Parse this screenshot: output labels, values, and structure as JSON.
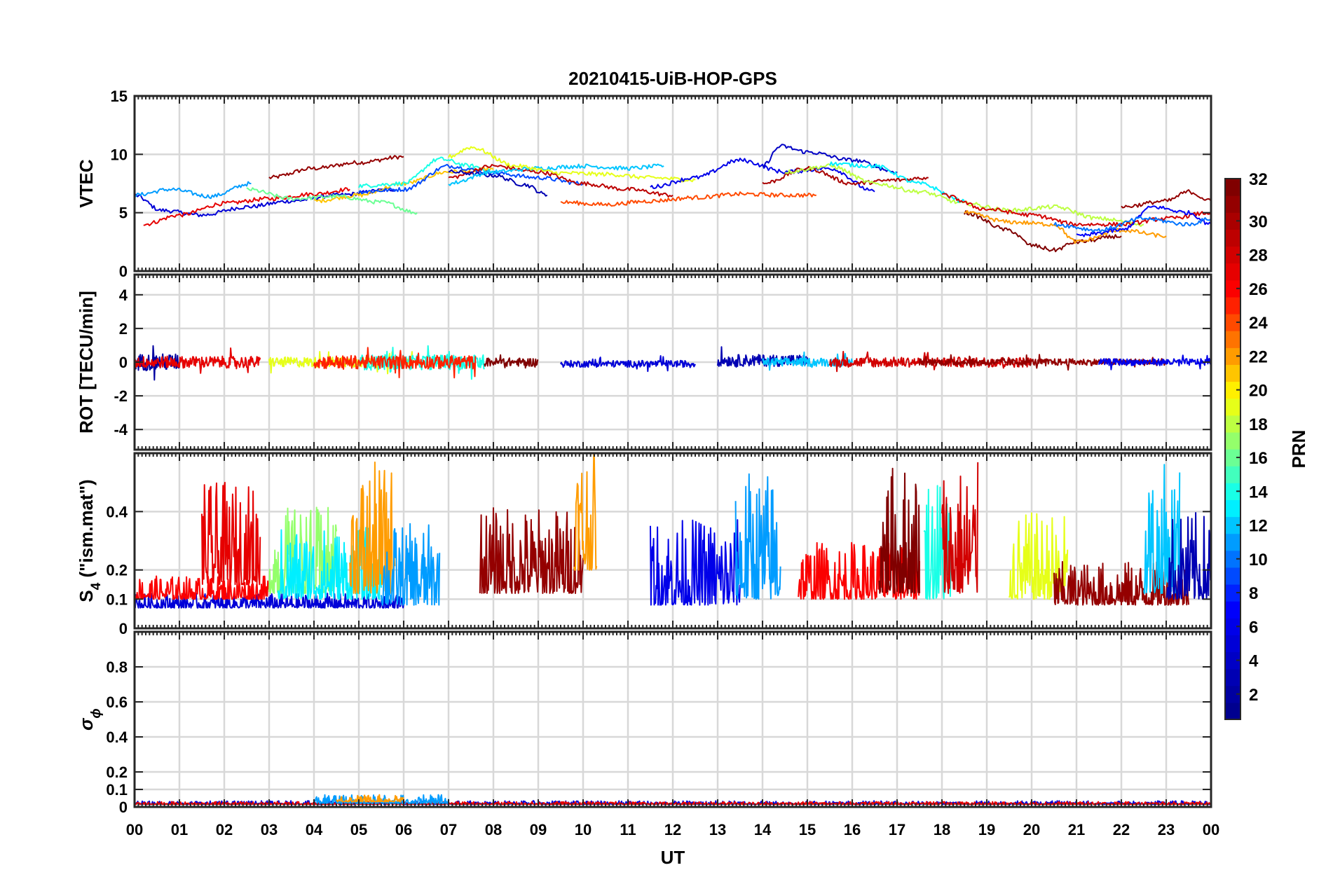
{
  "title": "20210415-UiB-HOP-GPS",
  "xlabel": "UT",
  "colormap": {
    "label": "PRN",
    "range": [
      1,
      32
    ],
    "ticks": [
      2,
      4,
      6,
      8,
      10,
      12,
      14,
      16,
      18,
      20,
      22,
      24,
      26,
      28,
      30,
      32
    ],
    "stops": [
      "#00008f",
      "#0000ff",
      "#00ffff",
      "#ffff00",
      "#ff0000",
      "#800000"
    ]
  },
  "chart_data": [
    {
      "type": "line",
      "id": "vtec",
      "ylabel": "VTEC",
      "ylabel_html": "",
      "xlim": [
        0,
        24
      ],
      "ylim": [
        0,
        15
      ],
      "yticks": [
        0,
        5,
        10,
        15
      ],
      "ytick_labels": [
        "0",
        "5",
        "10",
        "15"
      ],
      "grid": true,
      "series_shape": "smooth",
      "series": [
        {
          "prn": 31,
          "x": [
            3.0,
            4.0,
            5.0,
            6.0
          ],
          "values": [
            8.0,
            8.8,
            9.3,
            9.8
          ]
        },
        {
          "prn": 5,
          "x": [
            0.0,
            0.6,
            1.5,
            2.5,
            3.5,
            4.5,
            5.8
          ],
          "values": [
            6.5,
            5.2,
            4.8,
            5.5,
            6.0,
            6.5,
            7.0
          ]
        },
        {
          "prn": 27,
          "x": [
            0.2,
            1.0,
            2.0,
            3.0,
            4.0,
            4.8
          ],
          "values": [
            4.0,
            4.8,
            5.8,
            6.2,
            6.6,
            7.0
          ]
        },
        {
          "prn": 11,
          "x": [
            0.0,
            0.8,
            1.7,
            2.6
          ],
          "values": [
            6.5,
            7.0,
            6.4,
            7.5
          ]
        },
        {
          "prn": 21,
          "x": [
            4.0,
            5.0,
            6.0,
            7.0,
            8.0
          ],
          "values": [
            6.0,
            6.5,
            7.5,
            8.5,
            8.7
          ]
        },
        {
          "prn": 16,
          "x": [
            2.5,
            3.5,
            4.5,
            5.5,
            6.3
          ],
          "values": [
            7.0,
            6.2,
            6.4,
            5.9,
            5.0
          ]
        },
        {
          "prn": 9,
          "x": [
            5.0,
            6.0,
            7.0,
            8.0,
            9.0,
            10.0
          ],
          "values": [
            6.8,
            7.0,
            9.0,
            8.4,
            8.0,
            7.5
          ]
        },
        {
          "prn": 14,
          "x": [
            5.0,
            6.0,
            6.8,
            7.5,
            8.0
          ],
          "values": [
            7.3,
            7.5,
            9.6,
            9.0,
            8.5
          ]
        },
        {
          "prn": 29,
          "x": [
            7.0,
            8.0,
            9.0,
            10.0,
            11.0,
            12.0
          ],
          "values": [
            8.0,
            9.0,
            8.5,
            7.5,
            7.0,
            6.5
          ]
        },
        {
          "prn": 3,
          "x": [
            7.0,
            8.0,
            8.7,
            9.2
          ],
          "values": [
            8.5,
            8.2,
            7.4,
            6.5
          ]
        },
        {
          "prn": 12,
          "x": [
            7.0,
            8.0,
            9.0,
            10.0,
            11.0,
            11.8
          ],
          "values": [
            7.5,
            8.5,
            8.8,
            9.0,
            8.8,
            9.0
          ]
        },
        {
          "prn": 19,
          "x": [
            7.0,
            7.5,
            8.5,
            9.5,
            10.5,
            11.5,
            12.5
          ],
          "values": [
            9.8,
            10.6,
            9.0,
            8.4,
            8.3,
            8.0,
            7.8
          ]
        },
        {
          "prn": 24,
          "x": [
            9.5,
            10.5,
            11.5,
            12.5,
            13.5,
            14.5,
            15.2
          ],
          "values": [
            5.9,
            5.7,
            6.0,
            6.3,
            6.6,
            6.5,
            6.5
          ]
        },
        {
          "prn": 6,
          "x": [
            11.5,
            12.5,
            13.5,
            14.5,
            15.5,
            16.5
          ],
          "values": [
            7.2,
            8.0,
            9.5,
            8.5,
            8.8,
            6.8
          ]
        },
        {
          "prn": 4,
          "x": [
            14.0,
            14.4,
            15.0,
            16.0,
            17.0
          ],
          "values": [
            9.0,
            10.7,
            10.2,
            9.5,
            8.5
          ]
        },
        {
          "prn": 30,
          "x": [
            14.0,
            15.0,
            16.0,
            17.0,
            17.7
          ],
          "values": [
            7.5,
            8.8,
            7.5,
            7.8,
            8.0
          ]
        },
        {
          "prn": 18,
          "x": [
            14.5,
            15.5,
            16.5,
            17.5,
            18.5,
            19.5,
            20.5,
            21.5,
            22.5
          ],
          "values": [
            8.5,
            9.0,
            7.5,
            6.8,
            5.8,
            5.2,
            5.5,
            4.5,
            4.0
          ]
        },
        {
          "prn": 13,
          "x": [
            15.5,
            16.5,
            17.5,
            18.5
          ],
          "values": [
            9.2,
            9.0,
            7.5,
            6.0
          ]
        },
        {
          "prn": 32,
          "x": [
            18.5,
            19.5,
            20.0,
            20.5,
            21.0,
            22.0
          ],
          "values": [
            5.0,
            3.5,
            2.2,
            1.8,
            2.5,
            3.0
          ]
        },
        {
          "prn": 22,
          "x": [
            18.5,
            19.5,
            20.5,
            21.0,
            22.0,
            23.0
          ],
          "values": [
            5.0,
            4.2,
            4.0,
            2.5,
            3.5,
            3.0
          ]
        },
        {
          "prn": 28,
          "x": [
            18.0,
            19.0,
            20.0,
            21.0,
            22.0,
            23.0,
            24.0
          ],
          "values": [
            6.5,
            5.3,
            4.8,
            4.0,
            4.0,
            4.5,
            5.0
          ]
        },
        {
          "prn": 7,
          "x": [
            21.0,
            22.0,
            22.7,
            23.5,
            24.0
          ],
          "values": [
            3.0,
            3.5,
            5.5,
            5.0,
            4.0
          ]
        },
        {
          "prn": 10,
          "x": [
            20.5,
            21.5,
            22.5,
            23.5,
            24.0
          ],
          "values": [
            4.0,
            3.5,
            4.5,
            4.0,
            4.5
          ]
        },
        {
          "prn": 31,
          "x": [
            22.0,
            23.0,
            23.5,
            24.0
          ],
          "values": [
            5.5,
            6.0,
            6.8,
            6.0
          ]
        }
      ]
    },
    {
      "type": "line",
      "id": "rot",
      "ylabel": "ROT [TECU/min]",
      "ylabel_html": "",
      "xlim": [
        0,
        24
      ],
      "ylim": [
        -5.2,
        5.2
      ],
      "yticks": [
        -4,
        -2,
        0,
        2,
        4
      ],
      "ytick_labels": [
        "-4",
        "-2",
        "0",
        "2",
        "4"
      ],
      "grid": true,
      "series_shape": "noise",
      "description_of_values": "noise around 0 TECU/min",
      "series": [
        {
          "prn": 2,
          "x_range": [
            0.0,
            1.0
          ],
          "baseline": 0.0,
          "amplitude": 0.5
        },
        {
          "prn": 27,
          "x_range": [
            0.0,
            2.8
          ],
          "baseline": 0.0,
          "amplitude": 0.35
        },
        {
          "prn": 19,
          "x_range": [
            3.0,
            6.2
          ],
          "baseline": 0.0,
          "amplitude": 0.3
        },
        {
          "prn": 14,
          "x_range": [
            5.0,
            7.8
          ],
          "baseline": 0.0,
          "amplitude": 0.45
        },
        {
          "prn": 25,
          "x_range": [
            4.0,
            7.6
          ],
          "baseline": 0.0,
          "amplitude": 0.4
        },
        {
          "prn": 32,
          "x_range": [
            7.8,
            9.0
          ],
          "baseline": 0.0,
          "amplitude": 0.25
        },
        {
          "prn": 5,
          "x_range": [
            9.5,
            12.5
          ],
          "baseline": -0.1,
          "amplitude": 0.2
        },
        {
          "prn": 3,
          "x_range": [
            13.0,
            15.0
          ],
          "baseline": 0.1,
          "amplitude": 0.35
        },
        {
          "prn": 12,
          "x_range": [
            14.0,
            16.0
          ],
          "baseline": 0.0,
          "amplitude": 0.25
        },
        {
          "prn": 28,
          "x_range": [
            15.5,
            20.0
          ],
          "baseline": 0.0,
          "amplitude": 0.3
        },
        {
          "prn": 31,
          "x_range": [
            17.5,
            23.0
          ],
          "baseline": 0.0,
          "amplitude": 0.2
        },
        {
          "prn": 6,
          "x_range": [
            21.5,
            24.0
          ],
          "baseline": 0.0,
          "amplitude": 0.2
        }
      ]
    },
    {
      "type": "line",
      "id": "s4",
      "ylabel": "",
      "ylabel_html": "S<tspan baseline-shift=\"sub\" font-size=\"19\">4</tspan> (\"ism.mat\")",
      "xlim": [
        0,
        24
      ],
      "ylim": [
        0,
        0.6
      ],
      "yticks": [
        0,
        0.1,
        0.2,
        0.4
      ],
      "ytick_labels": [
        "0",
        "0.1",
        "0.2",
        "0.4"
      ],
      "grid": true,
      "series_shape": "noise",
      "series": [
        {
          "prn": 5,
          "x_range": [
            0.0,
            6.0
          ],
          "baseline": 0.07,
          "amplitude": 0.05
        },
        {
          "prn": 27,
          "x_range": [
            1.5,
            2.8
          ],
          "baseline": 0.15,
          "amplitude": 0.35
        },
        {
          "prn": 26,
          "x_range": [
            0.0,
            3.0
          ],
          "baseline": 0.1,
          "amplitude": 0.08
        },
        {
          "prn": 17,
          "x_range": [
            3.0,
            4.5
          ],
          "baseline": 0.12,
          "amplitude": 0.3
        },
        {
          "prn": 13,
          "x_range": [
            3.2,
            5.5
          ],
          "baseline": 0.1,
          "amplitude": 0.25
        },
        {
          "prn": 22,
          "x_range": [
            4.8,
            5.8
          ],
          "baseline": 0.12,
          "amplitude": 0.45
        },
        {
          "prn": 11,
          "x_range": [
            5.5,
            6.8
          ],
          "baseline": 0.08,
          "amplitude": 0.28
        },
        {
          "prn": 31,
          "x_range": [
            7.7,
            10.0
          ],
          "baseline": 0.12,
          "amplitude": 0.3
        },
        {
          "prn": 22,
          "x_range": [
            9.8,
            10.3
          ],
          "baseline": 0.2,
          "amplitude": 0.45
        },
        {
          "prn": 6,
          "x_range": [
            11.5,
            13.5
          ],
          "baseline": 0.08,
          "amplitude": 0.3
        },
        {
          "prn": 11,
          "x_range": [
            13.4,
            14.4
          ],
          "baseline": 0.1,
          "amplitude": 0.45
        },
        {
          "prn": 26,
          "x_range": [
            14.8,
            17.5
          ],
          "baseline": 0.1,
          "amplitude": 0.2
        },
        {
          "prn": 32,
          "x_range": [
            16.6,
            17.5
          ],
          "baseline": 0.12,
          "amplitude": 0.45
        },
        {
          "prn": 14,
          "x_range": [
            17.6,
            18.2
          ],
          "baseline": 0.1,
          "amplitude": 0.45
        },
        {
          "prn": 28,
          "x_range": [
            18.0,
            18.8
          ],
          "baseline": 0.12,
          "amplitude": 0.45
        },
        {
          "prn": 19,
          "x_range": [
            19.5,
            20.8
          ],
          "baseline": 0.1,
          "amplitude": 0.3
        },
        {
          "prn": 31,
          "x_range": [
            20.5,
            23.5
          ],
          "baseline": 0.08,
          "amplitude": 0.15
        },
        {
          "prn": 12,
          "x_range": [
            22.5,
            23.3
          ],
          "baseline": 0.12,
          "amplitude": 0.45
        },
        {
          "prn": 3,
          "x_range": [
            23.0,
            24.0
          ],
          "baseline": 0.1,
          "amplitude": 0.3
        }
      ]
    },
    {
      "type": "line",
      "id": "sigma",
      "ylabel": "",
      "ylabel_html": "<tspan font-style=\"italic\">σ</tspan><tspan baseline-shift=\"sub\" font-size=\"19\" font-style=\"italic\">ϕ</tspan>",
      "xlim": [
        0,
        24
      ],
      "ylim": [
        0,
        1.0
      ],
      "yticks": [
        0,
        0.1,
        0.2,
        0.4,
        0.6,
        0.8
      ],
      "ytick_labels": [
        "0",
        "0.1",
        "0.2",
        "0.4",
        "0.6",
        "0.8"
      ],
      "grid": true,
      "series_shape": "noise",
      "series": [
        {
          "prn": 5,
          "x_range": [
            0.0,
            24.0
          ],
          "baseline": 0.015,
          "amplitude": 0.02
        },
        {
          "prn": 27,
          "x_range": [
            0.0,
            24.0
          ],
          "baseline": 0.015,
          "amplitude": 0.015
        },
        {
          "prn": 11,
          "x_range": [
            4.0,
            7.0
          ],
          "baseline": 0.02,
          "amplitude": 0.05
        },
        {
          "prn": 22,
          "x_range": [
            4.5,
            6.0
          ],
          "baseline": 0.03,
          "amplitude": 0.04
        }
      ]
    }
  ],
  "xaxis": {
    "ticks": [
      0,
      1,
      2,
      3,
      4,
      5,
      6,
      7,
      8,
      9,
      10,
      11,
      12,
      13,
      14,
      15,
      16,
      17,
      18,
      19,
      20,
      21,
      22,
      23,
      24
    ],
    "tick_labels": [
      "00",
      "01",
      "02",
      "03",
      "04",
      "05",
      "06",
      "07",
      "08",
      "09",
      "10",
      "11",
      "12",
      "13",
      "14",
      "15",
      "16",
      "17",
      "18",
      "19",
      "20",
      "21",
      "22",
      "23",
      "00"
    ]
  }
}
